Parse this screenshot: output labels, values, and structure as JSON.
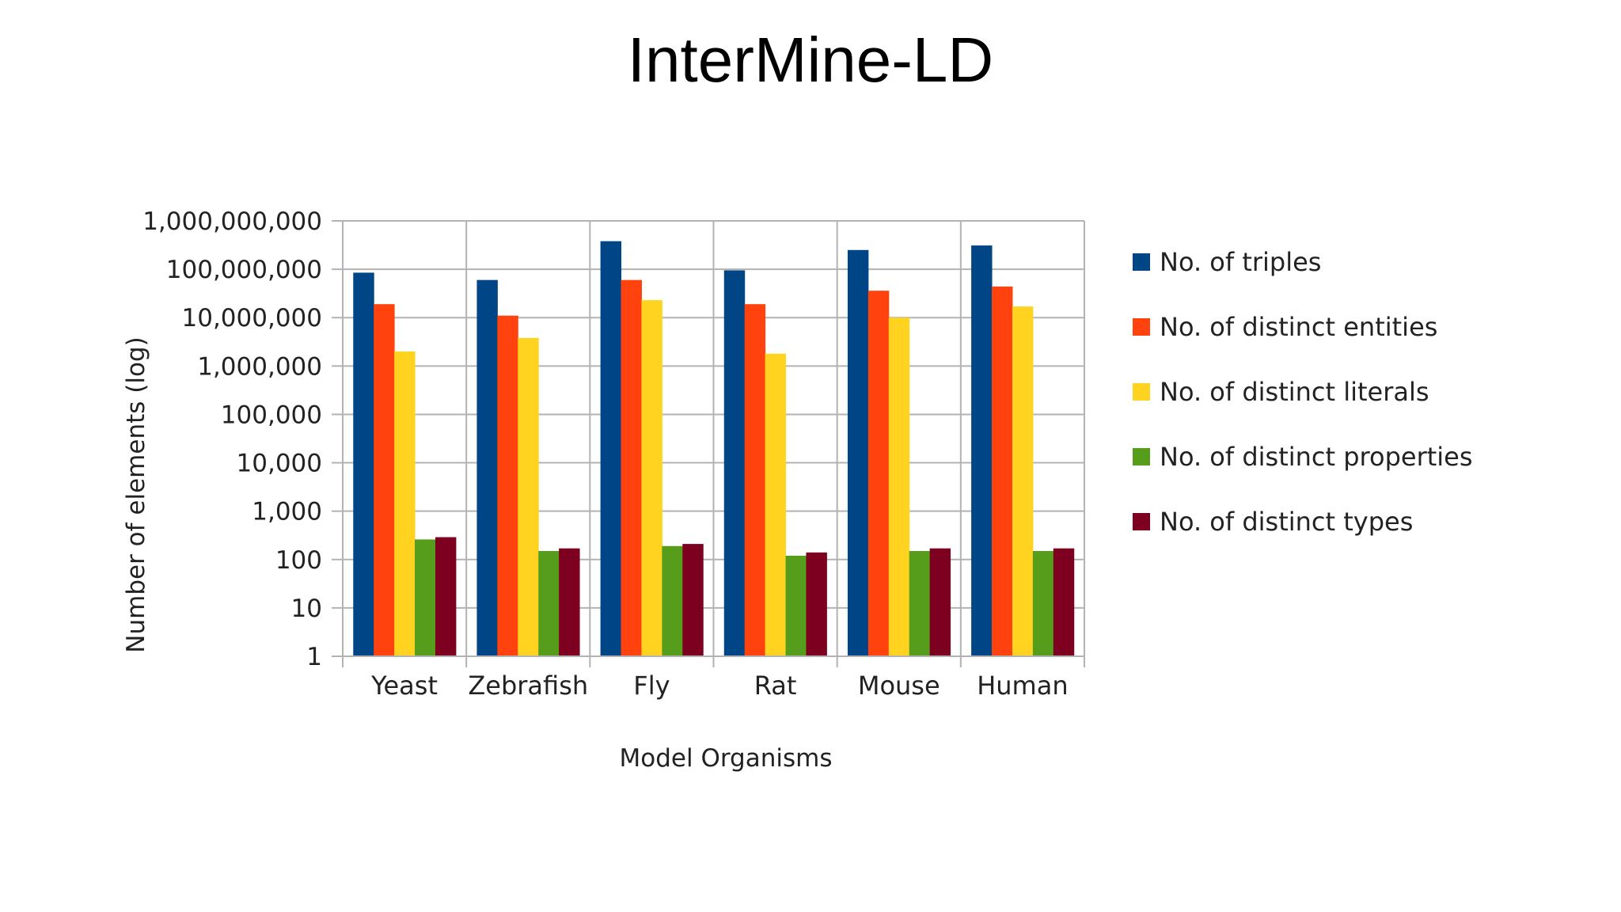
{
  "slide": {
    "title": "InterMine-LD"
  },
  "chart_data": {
    "type": "bar",
    "title": "",
    "xlabel": "Model Organisms",
    "ylabel": "Number of elements (log)",
    "yscale": "log",
    "ylim": [
      1,
      1000000000
    ],
    "yticks": [
      1,
      10,
      100,
      1000,
      10000,
      100000,
      1000000,
      10000000,
      100000000,
      1000000000
    ],
    "ytick_labels": [
      "1",
      "10",
      "100",
      "1,000",
      "10,000",
      "100,000",
      "1,000,000",
      "10,000,000",
      "100,000,000",
      "1,000,000,000"
    ],
    "grid": true,
    "legend": "right",
    "categories": [
      "Yeast",
      "Zebrafish",
      "Fly",
      "Rat",
      "Mouse",
      "Human"
    ],
    "series": [
      {
        "name": "No. of triples",
        "color": "#004586",
        "values": [
          85000000,
          60000000,
          380000000,
          95000000,
          250000000,
          310000000
        ]
      },
      {
        "name": "No. of distinct entities",
        "color": "#ff420e",
        "values": [
          19000000,
          11000000,
          60000000,
          19000000,
          36000000,
          44000000
        ]
      },
      {
        "name": "No. of distinct literals",
        "color": "#ffd320",
        "values": [
          2000000,
          3800000,
          23000000,
          1800000,
          10000000,
          17000000
        ]
      },
      {
        "name": "No. of distinct properties",
        "color": "#579d1c",
        "values": [
          260,
          150,
          190,
          120,
          150,
          150
        ]
      },
      {
        "name": "No. of distinct types",
        "color": "#7e0021",
        "values": [
          290,
          170,
          210,
          140,
          170,
          170
        ]
      }
    ]
  }
}
